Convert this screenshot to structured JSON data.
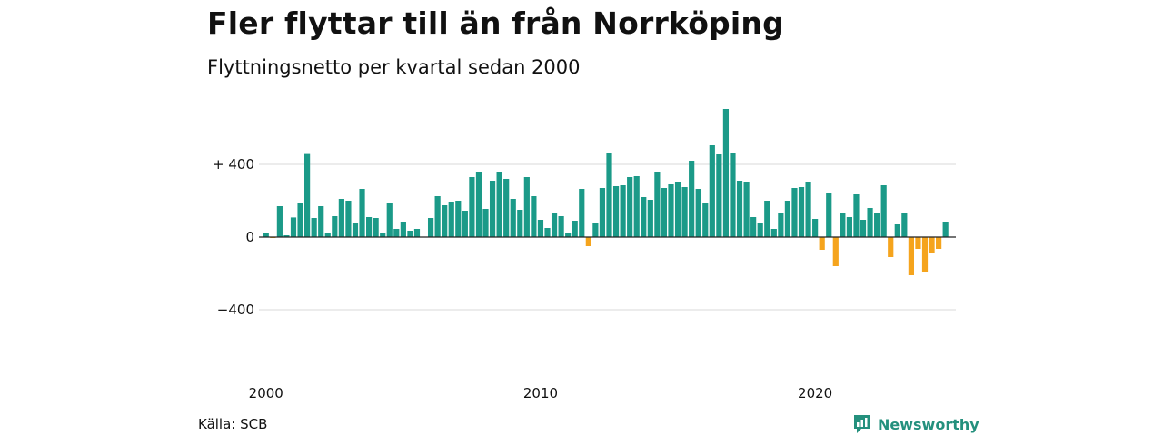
{
  "title": "Fler flyttar till än från Norrköping",
  "subtitle": "Flyttningsnetto per kvartal sedan 2000",
  "source": "Källa: SCB",
  "brand": {
    "name": "Newsworthy",
    "icon": "newsworthy-logo-icon",
    "color": "#24907d"
  },
  "colors": {
    "positive": "#1b9a88",
    "negative": "#f5a41d",
    "grid": "#d9d9d9",
    "baseline": "#222222"
  },
  "chart_data": {
    "type": "bar",
    "title": "Fler flyttar till än från Norrköping",
    "subtitle": "Flyttningsnetto per kvartal sedan 2000",
    "xlabel": "",
    "ylabel": "",
    "ylim": [
      -600,
      720
    ],
    "grid": true,
    "legend": "none",
    "yticks": [
      {
        "value": 400,
        "label": "+ 400"
      },
      {
        "value": 0,
        "label": "0"
      },
      {
        "value": -400,
        "label": "−400"
      }
    ],
    "xticks": [
      {
        "x": "2000K1",
        "label": "2000"
      },
      {
        "x": "2010K1",
        "label": "2010"
      },
      {
        "x": "2020K1",
        "label": "2020"
      }
    ],
    "categories": [
      "2000K1",
      "2000K2",
      "2000K3",
      "2000K4",
      "2001K1",
      "2001K2",
      "2001K3",
      "2001K4",
      "2002K1",
      "2002K2",
      "2002K3",
      "2002K4",
      "2003K1",
      "2003K2",
      "2003K3",
      "2003K4",
      "2004K1",
      "2004K2",
      "2004K3",
      "2004K4",
      "2005K1",
      "2005K2",
      "2005K3",
      "2005K4",
      "2006K1",
      "2006K2",
      "2006K3",
      "2006K4",
      "2007K1",
      "2007K2",
      "2007K3",
      "2007K4",
      "2008K1",
      "2008K2",
      "2008K3",
      "2008K4",
      "2009K1",
      "2009K2",
      "2009K3",
      "2009K4",
      "2010K1",
      "2010K2",
      "2010K3",
      "2010K4",
      "2011K1",
      "2011K2",
      "2011K3",
      "2011K4",
      "2012K1",
      "2012K2",
      "2012K3",
      "2012K4",
      "2013K1",
      "2013K2",
      "2013K3",
      "2013K4",
      "2014K1",
      "2014K2",
      "2014K3",
      "2014K4",
      "2015K1",
      "2015K2",
      "2015K3",
      "2015K4",
      "2016K1",
      "2016K2",
      "2016K3",
      "2016K4",
      "2017K1",
      "2017K2",
      "2017K3",
      "2017K4",
      "2018K1",
      "2018K2",
      "2018K3",
      "2018K4",
      "2019K1",
      "2019K2",
      "2019K3",
      "2019K4",
      "2020K1",
      "2020K2",
      "2020K3",
      "2020K4",
      "2021K1",
      "2021K2",
      "2021K3",
      "2021K4",
      "2022K1",
      "2022K2",
      "2022K3",
      "2022K4",
      "2023K1",
      "2023K2",
      "2023K3",
      "2023K4",
      "2024K1",
      "2024K2",
      "2024K3",
      "2024K4",
      "2025K1"
    ],
    "values": [
      24,
      -5,
      170,
      10,
      108,
      190,
      462,
      105,
      170,
      25,
      115,
      210,
      200,
      80,
      265,
      110,
      105,
      20,
      190,
      45,
      85,
      35,
      45,
      0,
      105,
      225,
      175,
      195,
      200,
      145,
      330,
      360,
      155,
      310,
      360,
      320,
      210,
      150,
      330,
      225,
      95,
      50,
      130,
      115,
      20,
      90,
      265,
      -50,
      80,
      270,
      465,
      280,
      285,
      330,
      335,
      220,
      205,
      360,
      270,
      290,
      305,
      275,
      420,
      265,
      190,
      505,
      460,
      705,
      465,
      310,
      305,
      110,
      75,
      200,
      45,
      135,
      200,
      270,
      275,
      305,
      100,
      -70,
      245,
      -160,
      130,
      110,
      235,
      95,
      160,
      130,
      285,
      -110,
      70,
      135,
      -210,
      -65,
      -190,
      -90,
      -65,
      85,
      0
    ]
  }
}
